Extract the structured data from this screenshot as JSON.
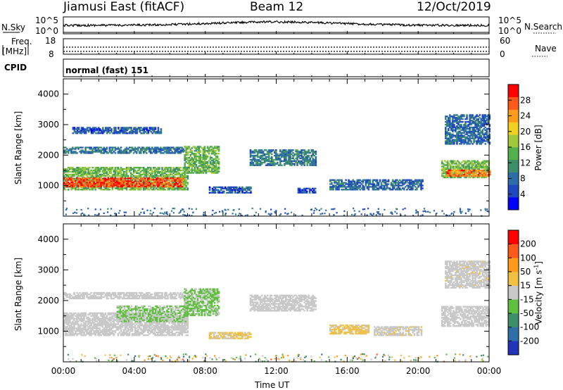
{
  "header": {
    "station": "Jiamusi East (fitACF)",
    "beam": "Beam 12",
    "date": "12/Oct/2019"
  },
  "status_panels": {
    "nsky_label": "N.Sky",
    "nsky_ticks": [
      "10^5",
      "10^0"
    ],
    "nsearch_label": "N.Search",
    "nsearch_ticks": [
      "10^5",
      "10^0"
    ],
    "freq_label_line1": "Freq.",
    "freq_label_line2": "[MHz]",
    "freq_ticks": [
      "18",
      "8"
    ],
    "nave_label": "Nave",
    "nave_ticks": [
      "60",
      "0"
    ],
    "cpid_label": "CPID",
    "cpid_value": "normal (fast) 151"
  },
  "x_axis": {
    "label": "Time UT",
    "ticks": [
      "00:00",
      "04:00",
      "08:00",
      "12:00",
      "16:00",
      "20:00",
      "00:00"
    ]
  },
  "colors": {
    "plot_background": "#ffffff",
    "axes": "#000000"
  },
  "chart_data": [
    {
      "type": "heatmap",
      "panel": "power",
      "ylabel": "Slant Range [km]",
      "yticks": [
        "1000",
        "2000",
        "3000",
        "4000"
      ],
      "ylim": [
        0,
        4500
      ],
      "xlim": [
        0,
        24
      ],
      "colorbar": {
        "label": "Power [dB]",
        "ticks": [
          "28",
          "24",
          "20",
          "16",
          "12",
          "8",
          "4"
        ],
        "range": [
          0,
          30
        ],
        "colors": [
          "#0000ff",
          "#1f48c0",
          "#2e6ea8",
          "#3c8f6a",
          "#53b04a",
          "#9fc93a",
          "#f0d020",
          "#ff9a1a",
          "#ff5a1a",
          "#ff0000"
        ]
      },
      "regions": [
        {
          "t": [
            0.0,
            7.0
          ],
          "r": [
            850,
            1600
          ],
          "level": 14
        },
        {
          "t": [
            0.0,
            6.8
          ],
          "r": [
            950,
            1250
          ],
          "level": 26
        },
        {
          "t": [
            0.0,
            6.8
          ],
          "r": [
            2050,
            2250
          ],
          "level": 8
        },
        {
          "t": [
            0.5,
            5.5
          ],
          "r": [
            2700,
            2900
          ],
          "level": 6
        },
        {
          "t": [
            6.8,
            8.8
          ],
          "r": [
            1400,
            2300
          ],
          "level": 14
        },
        {
          "t": [
            8.2,
            10.6
          ],
          "r": [
            750,
            950
          ],
          "level": 6
        },
        {
          "t": [
            10.5,
            14.2
          ],
          "r": [
            1650,
            2150
          ],
          "level": 9
        },
        {
          "t": [
            13.2,
            14.2
          ],
          "r": [
            750,
            900
          ],
          "level": 5
        },
        {
          "t": [
            15.0,
            20.2
          ],
          "r": [
            850,
            1200
          ],
          "level": 7
        },
        {
          "t": [
            21.3,
            24.0
          ],
          "r": [
            1250,
            1800
          ],
          "level": 14
        },
        {
          "t": [
            21.6,
            24.0
          ],
          "r": [
            1300,
            1500
          ],
          "level": 24
        },
        {
          "t": [
            21.5,
            24.0
          ],
          "r": [
            2350,
            3300
          ],
          "level": 7
        }
      ]
    },
    {
      "type": "heatmap",
      "panel": "velocity",
      "ylabel": "Slant Range [km]",
      "yticks": [
        "1000",
        "2000",
        "3000",
        "4000"
      ],
      "ylim": [
        0,
        4500
      ],
      "xlim": [
        0,
        24
      ],
      "colorbar": {
        "label": "Velocity [m s^-1]",
        "ticks": [
          "200",
          "100",
          "50",
          "15",
          "-15",
          "-50",
          "-100",
          "-200"
        ],
        "range": [
          -250,
          250
        ],
        "colors": [
          "#2233bb",
          "#2e6fa8",
          "#3c8f6a",
          "#5fbf3f",
          "#c8c8c8",
          "#f2c040",
          "#ff9a1a",
          "#ff5a1a",
          "#ff0000"
        ]
      },
      "regions": [
        {
          "t": [
            0.0,
            7.0
          ],
          "r": [
            850,
            1600
          ],
          "level": 0
        },
        {
          "t": [
            3.0,
            7.0
          ],
          "r": [
            1300,
            1800
          ],
          "level": -30
        },
        {
          "t": [
            0.0,
            6.8
          ],
          "r": [
            2050,
            2250
          ],
          "level": 0
        },
        {
          "t": [
            6.8,
            8.8
          ],
          "r": [
            1500,
            2400
          ],
          "level": -35
        },
        {
          "t": [
            8.2,
            10.6
          ],
          "r": [
            750,
            950
          ],
          "level": 40
        },
        {
          "t": [
            10.5,
            14.2
          ],
          "r": [
            1650,
            2150
          ],
          "level": 0
        },
        {
          "t": [
            15.0,
            17.2
          ],
          "r": [
            900,
            1200
          ],
          "level": 40
        },
        {
          "t": [
            17.5,
            20.2
          ],
          "r": [
            850,
            1150
          ],
          "level": 10
        },
        {
          "t": [
            21.3,
            24.0
          ],
          "r": [
            1150,
            1800
          ],
          "level": 0
        },
        {
          "t": [
            21.5,
            24.0
          ],
          "r": [
            2400,
            3300
          ],
          "level": 5
        }
      ]
    }
  ]
}
